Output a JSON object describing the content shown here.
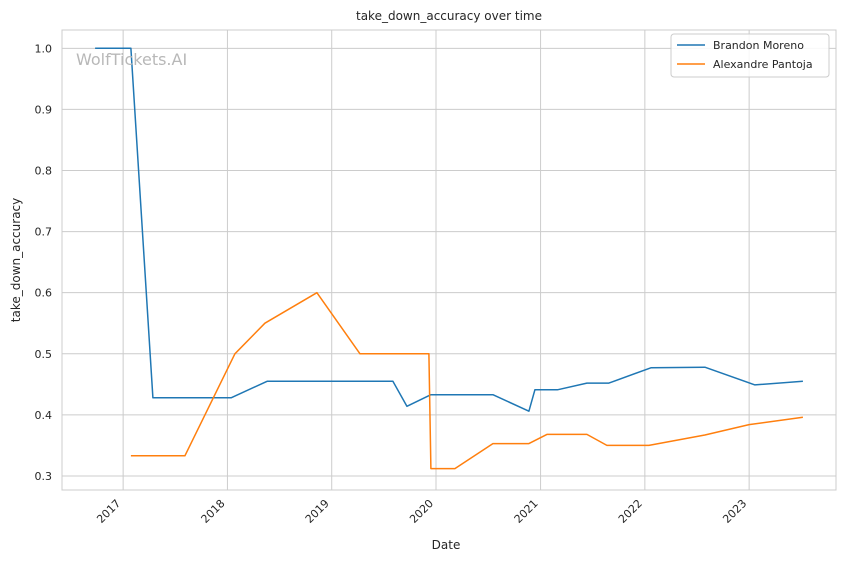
{
  "watermark": "WolfTickets.AI",
  "chart_data": {
    "type": "line",
    "title": "take_down_accuracy over time",
    "xlabel": "Date",
    "ylabel": "take_down_accuracy",
    "xlim": [
      "2016-06-01",
      "2023-11-01"
    ],
    "ylim": [
      0.277,
      1.03
    ],
    "x_ticks": [
      "2017-01-01",
      "2018-01-01",
      "2019-01-01",
      "2020-01-01",
      "2021-01-01",
      "2022-01-01",
      "2023-01-01"
    ],
    "x_tick_labels": [
      "2017",
      "2018",
      "2019",
      "2020",
      "2021",
      "2022",
      "2023"
    ],
    "y_ticks": [
      0.3,
      0.4,
      0.5,
      0.6,
      0.7,
      0.8,
      0.9,
      1.0
    ],
    "y_tick_labels": [
      "0.3",
      "0.4",
      "0.5",
      "0.6",
      "0.7",
      "0.8",
      "0.9",
      "1.0"
    ],
    "grid": true,
    "legend": "top-right",
    "series": [
      {
        "name": "Brandon Moreno",
        "color": "#1f77b4",
        "points": [
          [
            "2016-09-25",
            1.0
          ],
          [
            "2017-01-28",
            1.0
          ],
          [
            "2017-04-15",
            0.428
          ],
          [
            "2018-01-14",
            0.428
          ],
          [
            "2018-05-20",
            0.455
          ],
          [
            "2019-08-03",
            0.455
          ],
          [
            "2019-09-21",
            0.414
          ],
          [
            "2019-12-14",
            0.433
          ],
          [
            "2020-07-18",
            0.433
          ],
          [
            "2020-11-21",
            0.406
          ],
          [
            "2020-12-12",
            0.441
          ],
          [
            "2021-03-01",
            0.441
          ],
          [
            "2021-06-12",
            0.452
          ],
          [
            "2021-08-28",
            0.452
          ],
          [
            "2022-01-22",
            0.477
          ],
          [
            "2022-07-30",
            0.478
          ],
          [
            "2023-01-21",
            0.449
          ],
          [
            "2023-07-08",
            0.455
          ]
        ]
      },
      {
        "name": "Alexandre Pantoja",
        "color": "#ff7f0e",
        "points": [
          [
            "2017-01-28",
            0.333
          ],
          [
            "2017-08-05",
            0.333
          ],
          [
            "2018-01-27",
            0.5
          ],
          [
            "2018-05-12",
            0.55
          ],
          [
            "2018-11-10",
            0.6
          ],
          [
            "2019-04-10",
            0.5
          ],
          [
            "2019-12-07",
            0.5
          ],
          [
            "2019-12-14",
            0.312
          ],
          [
            "2020-03-07",
            0.312
          ],
          [
            "2020-07-18",
            0.353
          ],
          [
            "2020-11-21",
            0.353
          ],
          [
            "2021-01-23",
            0.368
          ],
          [
            "2021-06-12",
            0.368
          ],
          [
            "2021-08-21",
            0.35
          ],
          [
            "2022-01-15",
            0.35
          ],
          [
            "2022-07-30",
            0.367
          ],
          [
            "2023-01-01",
            0.384
          ],
          [
            "2023-07-08",
            0.396
          ]
        ]
      }
    ]
  }
}
